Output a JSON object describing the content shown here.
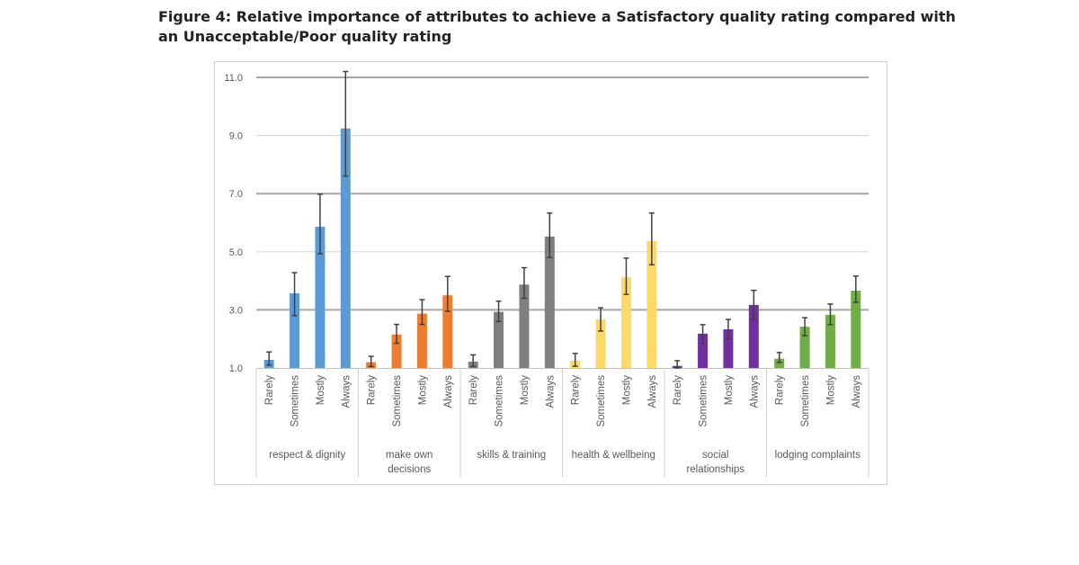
{
  "title_lines": [
    "Figure 4: Relative importance of attributes to achieve a Satisfactory quality rating compared with",
    "an Unacceptable/Poor quality rating"
  ],
  "chart_data": {
    "type": "bar",
    "title": "Figure 4: Relative importance of attributes to achieve a Satisfactory quality rating compared with an Unacceptable/Poor quality rating",
    "xlabel": "",
    "ylabel": "",
    "ylim": [
      1.0,
      11.0
    ],
    "yticks": [
      "1.0",
      "3.0",
      "5.0",
      "7.0",
      "9.0",
      "11.0"
    ],
    "ytick_values": [
      1,
      3,
      5,
      7,
      9,
      11
    ],
    "grid": true,
    "legend": "none",
    "subcategories": [
      "Rarely",
      "Sometimes",
      "Mostly",
      "Always"
    ],
    "groups": [
      {
        "label": [
          "respect & dignity"
        ],
        "color": "#5b9bd5",
        "values": [
          1.28,
          3.57,
          5.86,
          9.24
        ],
        "err_low": [
          1.1,
          2.8,
          4.93,
          7.6
        ],
        "err_high": [
          1.55,
          4.28,
          6.98,
          11.2
        ]
      },
      {
        "label": [
          "make own",
          "decisions"
        ],
        "color": "#ed7d31",
        "values": [
          1.2,
          2.15,
          2.87,
          3.5
        ],
        "err_low": [
          1.05,
          1.85,
          2.5,
          2.95
        ],
        "err_high": [
          1.4,
          2.5,
          3.35,
          4.15
        ]
      },
      {
        "label": [
          "skills & training"
        ],
        "color": "#7f7f7f",
        "values": [
          1.22,
          2.93,
          3.87,
          5.52
        ],
        "err_low": [
          1.05,
          2.6,
          3.4,
          4.8
        ],
        "err_high": [
          1.45,
          3.3,
          4.45,
          6.33
        ]
      },
      {
        "label": [
          "health & wellbeing"
        ],
        "color": "#ffd966",
        "values": [
          1.25,
          2.67,
          4.12,
          5.37
        ],
        "err_low": [
          1.06,
          2.27,
          3.53,
          4.55
        ],
        "err_high": [
          1.5,
          3.07,
          4.78,
          6.33
        ]
      },
      {
        "label": [
          "social",
          "relationships"
        ],
        "color": "#7030a0",
        "values": [
          1.07,
          2.18,
          2.33,
          3.17
        ],
        "err_low": [
          1.0,
          1.84,
          2.0,
          2.67
        ],
        "err_high": [
          1.25,
          2.49,
          2.67,
          3.67
        ]
      },
      {
        "label": [
          "lodging complaints"
        ],
        "color": "#70ad47",
        "values": [
          1.32,
          2.42,
          2.83,
          3.66
        ],
        "err_low": [
          1.19,
          2.11,
          2.49,
          3.26
        ],
        "err_high": [
          1.53,
          2.73,
          3.2,
          4.16
        ]
      }
    ]
  }
}
